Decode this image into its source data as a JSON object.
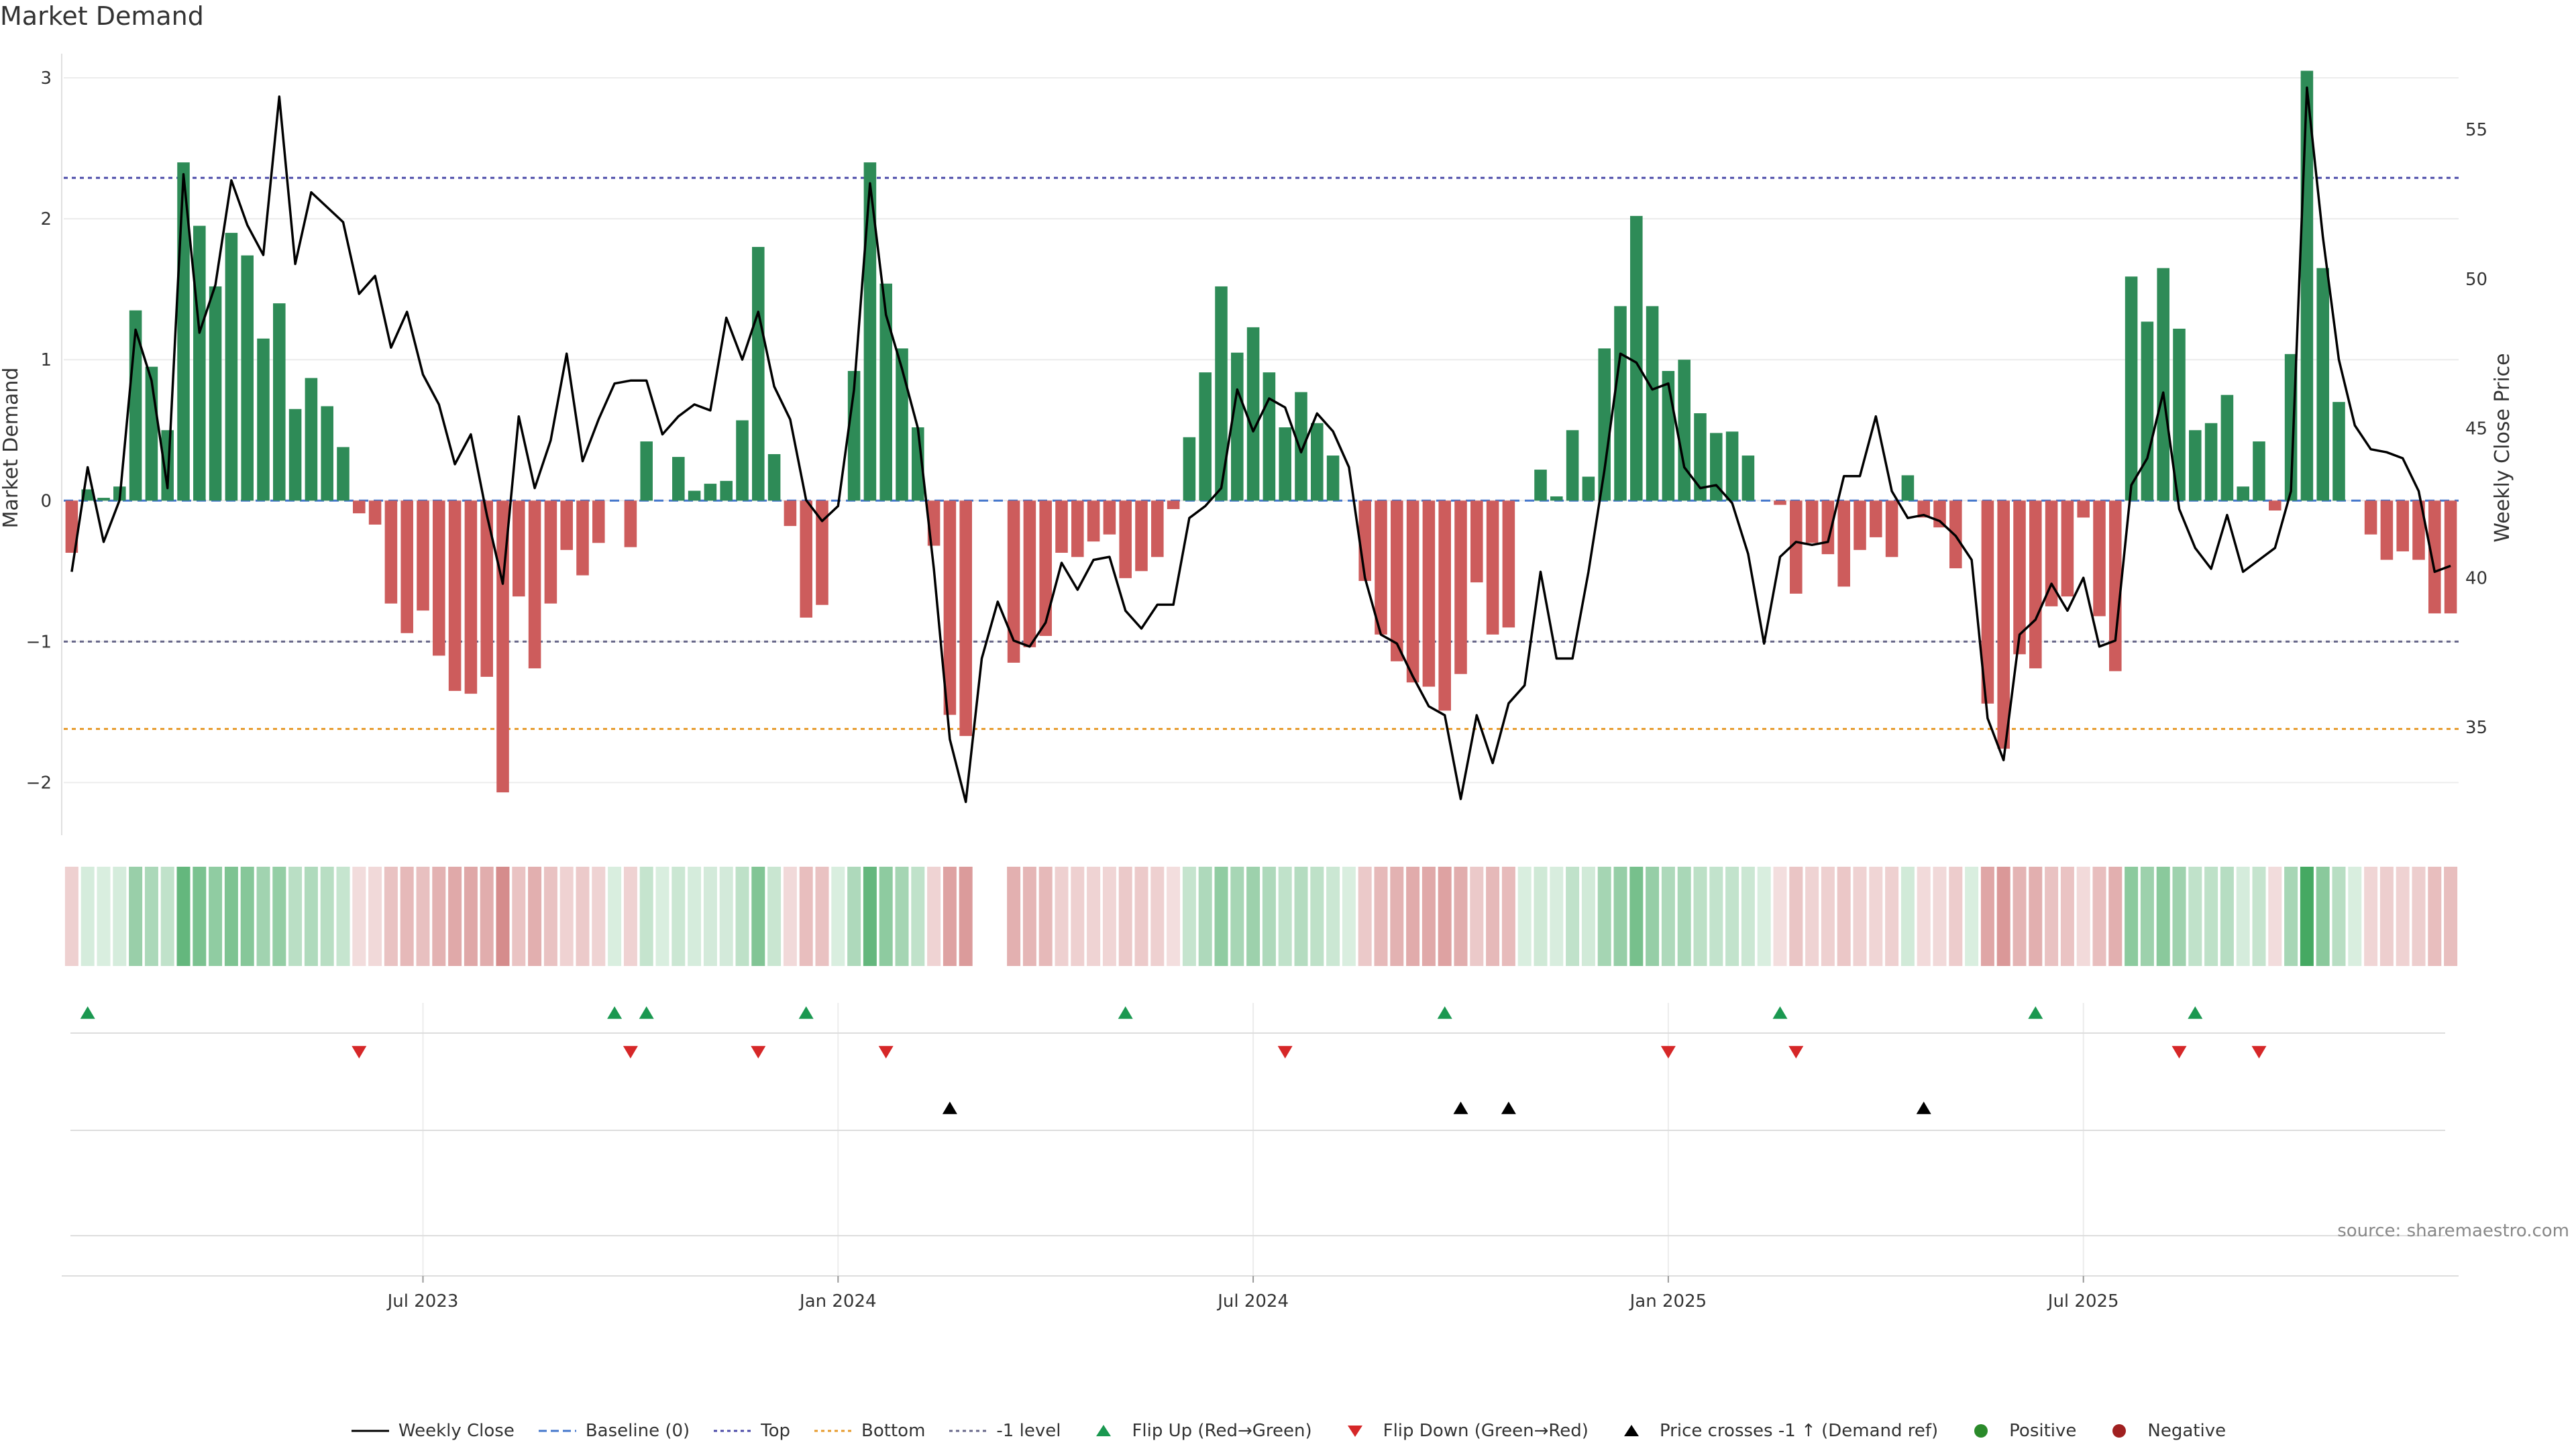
{
  "title": "Market Demand",
  "source": "source: sharemaestro.com",
  "colors": {
    "positive_bar": "#2e8b57",
    "negative_bar": "#cd5c5c",
    "price_line": "#000000",
    "top_line": "#4a4aa8",
    "bottom_line": "#e69a2b",
    "level_line": "#666688",
    "baseline": "#4477cc",
    "flip_up": "#1a9850",
    "flip_down": "#d62728",
    "price_cross": "#000000",
    "heat_pos": "#2e9e4f",
    "heat_neg": "#c05050"
  },
  "legend": [
    {
      "label": "Weekly Close",
      "icon": "solid-line-icon",
      "color": "#000000"
    },
    {
      "label": "Baseline (0)",
      "icon": "dashed-line-icon",
      "color": "#4477cc"
    },
    {
      "label": "Top",
      "icon": "dotted-line-icon",
      "color": "#4a4aa8"
    },
    {
      "label": "Bottom",
      "icon": "dotted-line-icon",
      "color": "#e69a2b"
    },
    {
      "label": "-1 level",
      "icon": "dotted-line-icon",
      "color": "#666688"
    },
    {
      "label": "Flip Up (Red→Green)",
      "icon": "triangle-up-icon",
      "color": "#1a9850"
    },
    {
      "label": "Flip Down (Green→Red)",
      "icon": "triangle-down-icon",
      "color": "#d62728"
    },
    {
      "label": "Price crosses -1 ↑ (Demand ref)",
      "icon": "triangle-up-icon",
      "color": "#000000"
    },
    {
      "label": "Positive",
      "icon": "dot-icon",
      "color": "#2a8a2a"
    },
    {
      "label": "Negative",
      "icon": "dot-icon",
      "color": "#a02020"
    }
  ],
  "chart_data": {
    "type": "bar",
    "title": "Market Demand",
    "ylabel": "Market Demand",
    "y2label": "Weekly Close Price",
    "ylim": [
      -2.35,
      3.1
    ],
    "y2lim": [
      31.5,
      57.2
    ],
    "yticks": [
      -2,
      -1,
      0,
      1,
      2,
      3
    ],
    "y2ticks": [
      35,
      40,
      45,
      50,
      55
    ],
    "xticks": [
      "Jul 2023",
      "Jan 2024",
      "Jul 2024",
      "Jan 2025",
      "Jul 2025"
    ],
    "xtick_week_index": [
      22,
      48,
      74,
      100,
      126
    ],
    "reference_lines": {
      "top": 2.29,
      "bottom": -1.62,
      "minus_one_level": -1.0,
      "baseline": 0
    },
    "grid": true,
    "start": "2023-01-27",
    "x_unit": "weekly bars",
    "demand_series_name": "Market Demand",
    "demand": [
      -0.37,
      0.08,
      0.02,
      0.1,
      1.35,
      0.95,
      0.5,
      2.4,
      1.95,
      1.52,
      1.9,
      1.74,
      1.15,
      1.4,
      0.65,
      0.87,
      0.67,
      0.38,
      -0.09,
      -0.17,
      -0.73,
      -0.94,
      -0.78,
      -1.1,
      -1.35,
      -1.37,
      -1.25,
      -2.07,
      -0.68,
      -1.19,
      -0.73,
      -0.35,
      -0.53,
      -0.3,
      0.0,
      -0.33,
      0.42,
      0.0,
      0.31,
      0.07,
      0.12,
      0.14,
      0.57,
      1.8,
      0.33,
      -0.18,
      -0.83,
      -0.74,
      0.0,
      0.92,
      2.4,
      1.54,
      1.08,
      0.52,
      -0.32,
      -1.52,
      -1.67,
      0.0,
      0.0,
      -1.15,
      -1.04,
      -0.96,
      -0.37,
      -0.4,
      -0.29,
      -0.24,
      -0.55,
      -0.5,
      -0.4,
      -0.06,
      0.45,
      0.91,
      1.52,
      1.05,
      1.23,
      0.91,
      0.52,
      0.77,
      0.55,
      0.32,
      0.0,
      -0.57,
      -0.95,
      -1.14,
      -1.29,
      -1.32,
      -1.49,
      -1.23,
      -0.58,
      -0.95,
      -0.9,
      0.0,
      0.22,
      0.03,
      0.5,
      0.17,
      1.08,
      1.38,
      2.02,
      1.38,
      0.92,
      1.0,
      0.62,
      0.48,
      0.49,
      0.32,
      0.0,
      -0.03,
      -0.66,
      -0.3,
      -0.38,
      -0.61,
      -0.35,
      -0.26,
      -0.4,
      0.18,
      -0.12,
      -0.19,
      -0.48,
      0.0,
      -1.44,
      -1.76,
      -1.09,
      -1.19,
      -0.75,
      -0.68,
      -0.12,
      -0.82,
      -1.21,
      1.59,
      1.27,
      1.65,
      1.22,
      0.5,
      0.55,
      0.75,
      0.1,
      0.42,
      -0.07,
      1.04,
      3.05,
      1.65,
      0.7,
      0.0,
      -0.24,
      -0.42,
      -0.36,
      -0.42,
      -0.8,
      -0.8
    ],
    "price_series_name": "Weekly Close",
    "price": [
      40.2,
      43.7,
      41.2,
      42.6,
      48.3,
      46.6,
      43.0,
      53.5,
      48.2,
      49.8,
      53.3,
      51.8,
      50.8,
      56.1,
      50.5,
      52.9,
      52.4,
      51.9,
      49.5,
      50.1,
      47.7,
      48.9,
      46.8,
      45.8,
      43.8,
      44.8,
      42.1,
      39.8,
      45.4,
      43.0,
      44.6,
      47.5,
      43.9,
      45.3,
      46.5,
      46.6,
      46.6,
      44.8,
      45.4,
      45.8,
      45.6,
      48.7,
      47.3,
      48.9,
      46.4,
      45.3,
      42.6,
      41.9,
      42.4,
      46.3,
      53.2,
      48.8,
      47.0,
      45.0,
      40.3,
      34.6,
      32.5,
      37.3,
      39.2,
      37.9,
      37.7,
      38.5,
      40.5,
      39.6,
      40.6,
      40.7,
      38.9,
      38.3,
      39.1,
      39.1,
      42.0,
      42.4,
      43.0,
      46.3,
      44.9,
      46.0,
      45.7,
      44.2,
      45.5,
      44.9,
      43.7,
      40.0,
      38.1,
      37.8,
      36.7,
      35.7,
      35.4,
      32.6,
      35.4,
      33.8,
      35.8,
      36.4,
      40.2,
      37.3,
      37.3,
      40.2,
      43.6,
      47.5,
      47.2,
      46.3,
      46.5,
      43.7,
      43.0,
      43.1,
      42.5,
      40.8,
      37.8,
      40.7,
      41.2,
      41.1,
      41.2,
      43.4,
      43.4,
      45.4,
      42.9,
      42.0,
      42.1,
      41.9,
      41.4,
      40.6,
      35.3,
      33.9,
      38.1,
      38.6,
      39.8,
      38.9,
      40.0,
      37.7,
      37.9,
      43.1,
      44.0,
      46.2,
      42.3,
      41.0,
      40.3,
      42.1,
      40.2,
      40.6,
      41.0,
      42.9,
      56.4,
      51.4,
      47.3,
      45.1,
      44.3,
      44.2,
      44.0,
      42.9,
      40.2,
      40.4
    ],
    "flip_up_weeks": [
      1,
      34,
      36,
      46,
      66,
      86,
      107,
      123,
      133
    ],
    "flip_down_weeks": [
      18,
      35,
      43,
      51,
      76,
      100,
      108,
      132,
      137
    ],
    "price_cross_weeks": [
      55,
      87,
      90,
      116
    ]
  }
}
